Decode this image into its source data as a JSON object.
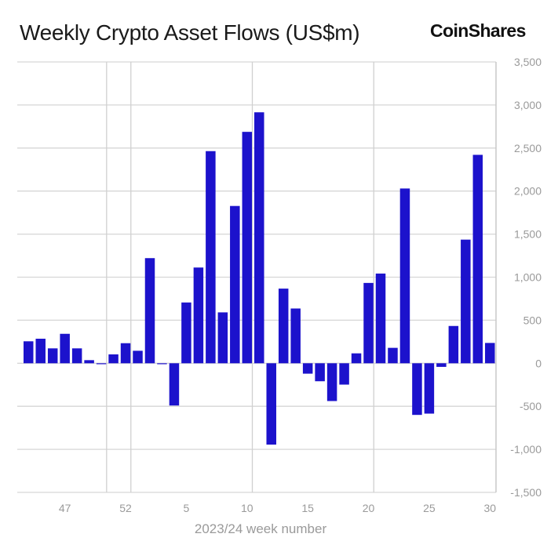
{
  "header": {
    "title": "Weekly Crypto Asset Flows (US$m)",
    "logo": "CoinShares"
  },
  "chart_data": {
    "type": "bar",
    "title": "Weekly Crypto Asset Flows (US$m)",
    "xlabel": "2023/24 week number",
    "ylabel": "",
    "ylim": [
      -1500,
      3500
    ],
    "yticks": [
      -1500,
      -1000,
      -500,
      0,
      500,
      1000,
      1500,
      2000,
      2500,
      3000,
      3500
    ],
    "ytick_labels": [
      "-1,500",
      "-1,000",
      "-500",
      "0",
      "500",
      "1,000",
      "1,500",
      "2,000",
      "2,500",
      "3,000",
      "3,500"
    ],
    "xtick_labels": [
      "47",
      "52",
      "5",
      "10",
      "15",
      "20",
      "25",
      "30"
    ],
    "grid": true,
    "y_axis_side": "right",
    "bar_color": "#1c12cc",
    "categories": [
      44,
      45,
      46,
      47,
      48,
      49,
      50,
      51,
      52,
      1,
      2,
      3,
      4,
      5,
      6,
      7,
      8,
      9,
      10,
      11,
      12,
      13,
      14,
      15,
      16,
      17,
      18,
      19,
      20,
      21,
      22,
      23,
      24,
      25,
      26,
      27,
      28,
      29,
      30
    ],
    "values": [
      255,
      285,
      173,
      342,
      173,
      36,
      -10,
      103,
      233,
      145,
      1221,
      -10,
      -491,
      706,
      1112,
      2464,
      591,
      1827,
      2688,
      2915,
      -945,
      867,
      636,
      -121,
      -209,
      -439,
      -248,
      115,
      933,
      1042,
      179,
      2030,
      -600,
      -585,
      -42,
      433,
      1436,
      2421,
      236
    ]
  }
}
